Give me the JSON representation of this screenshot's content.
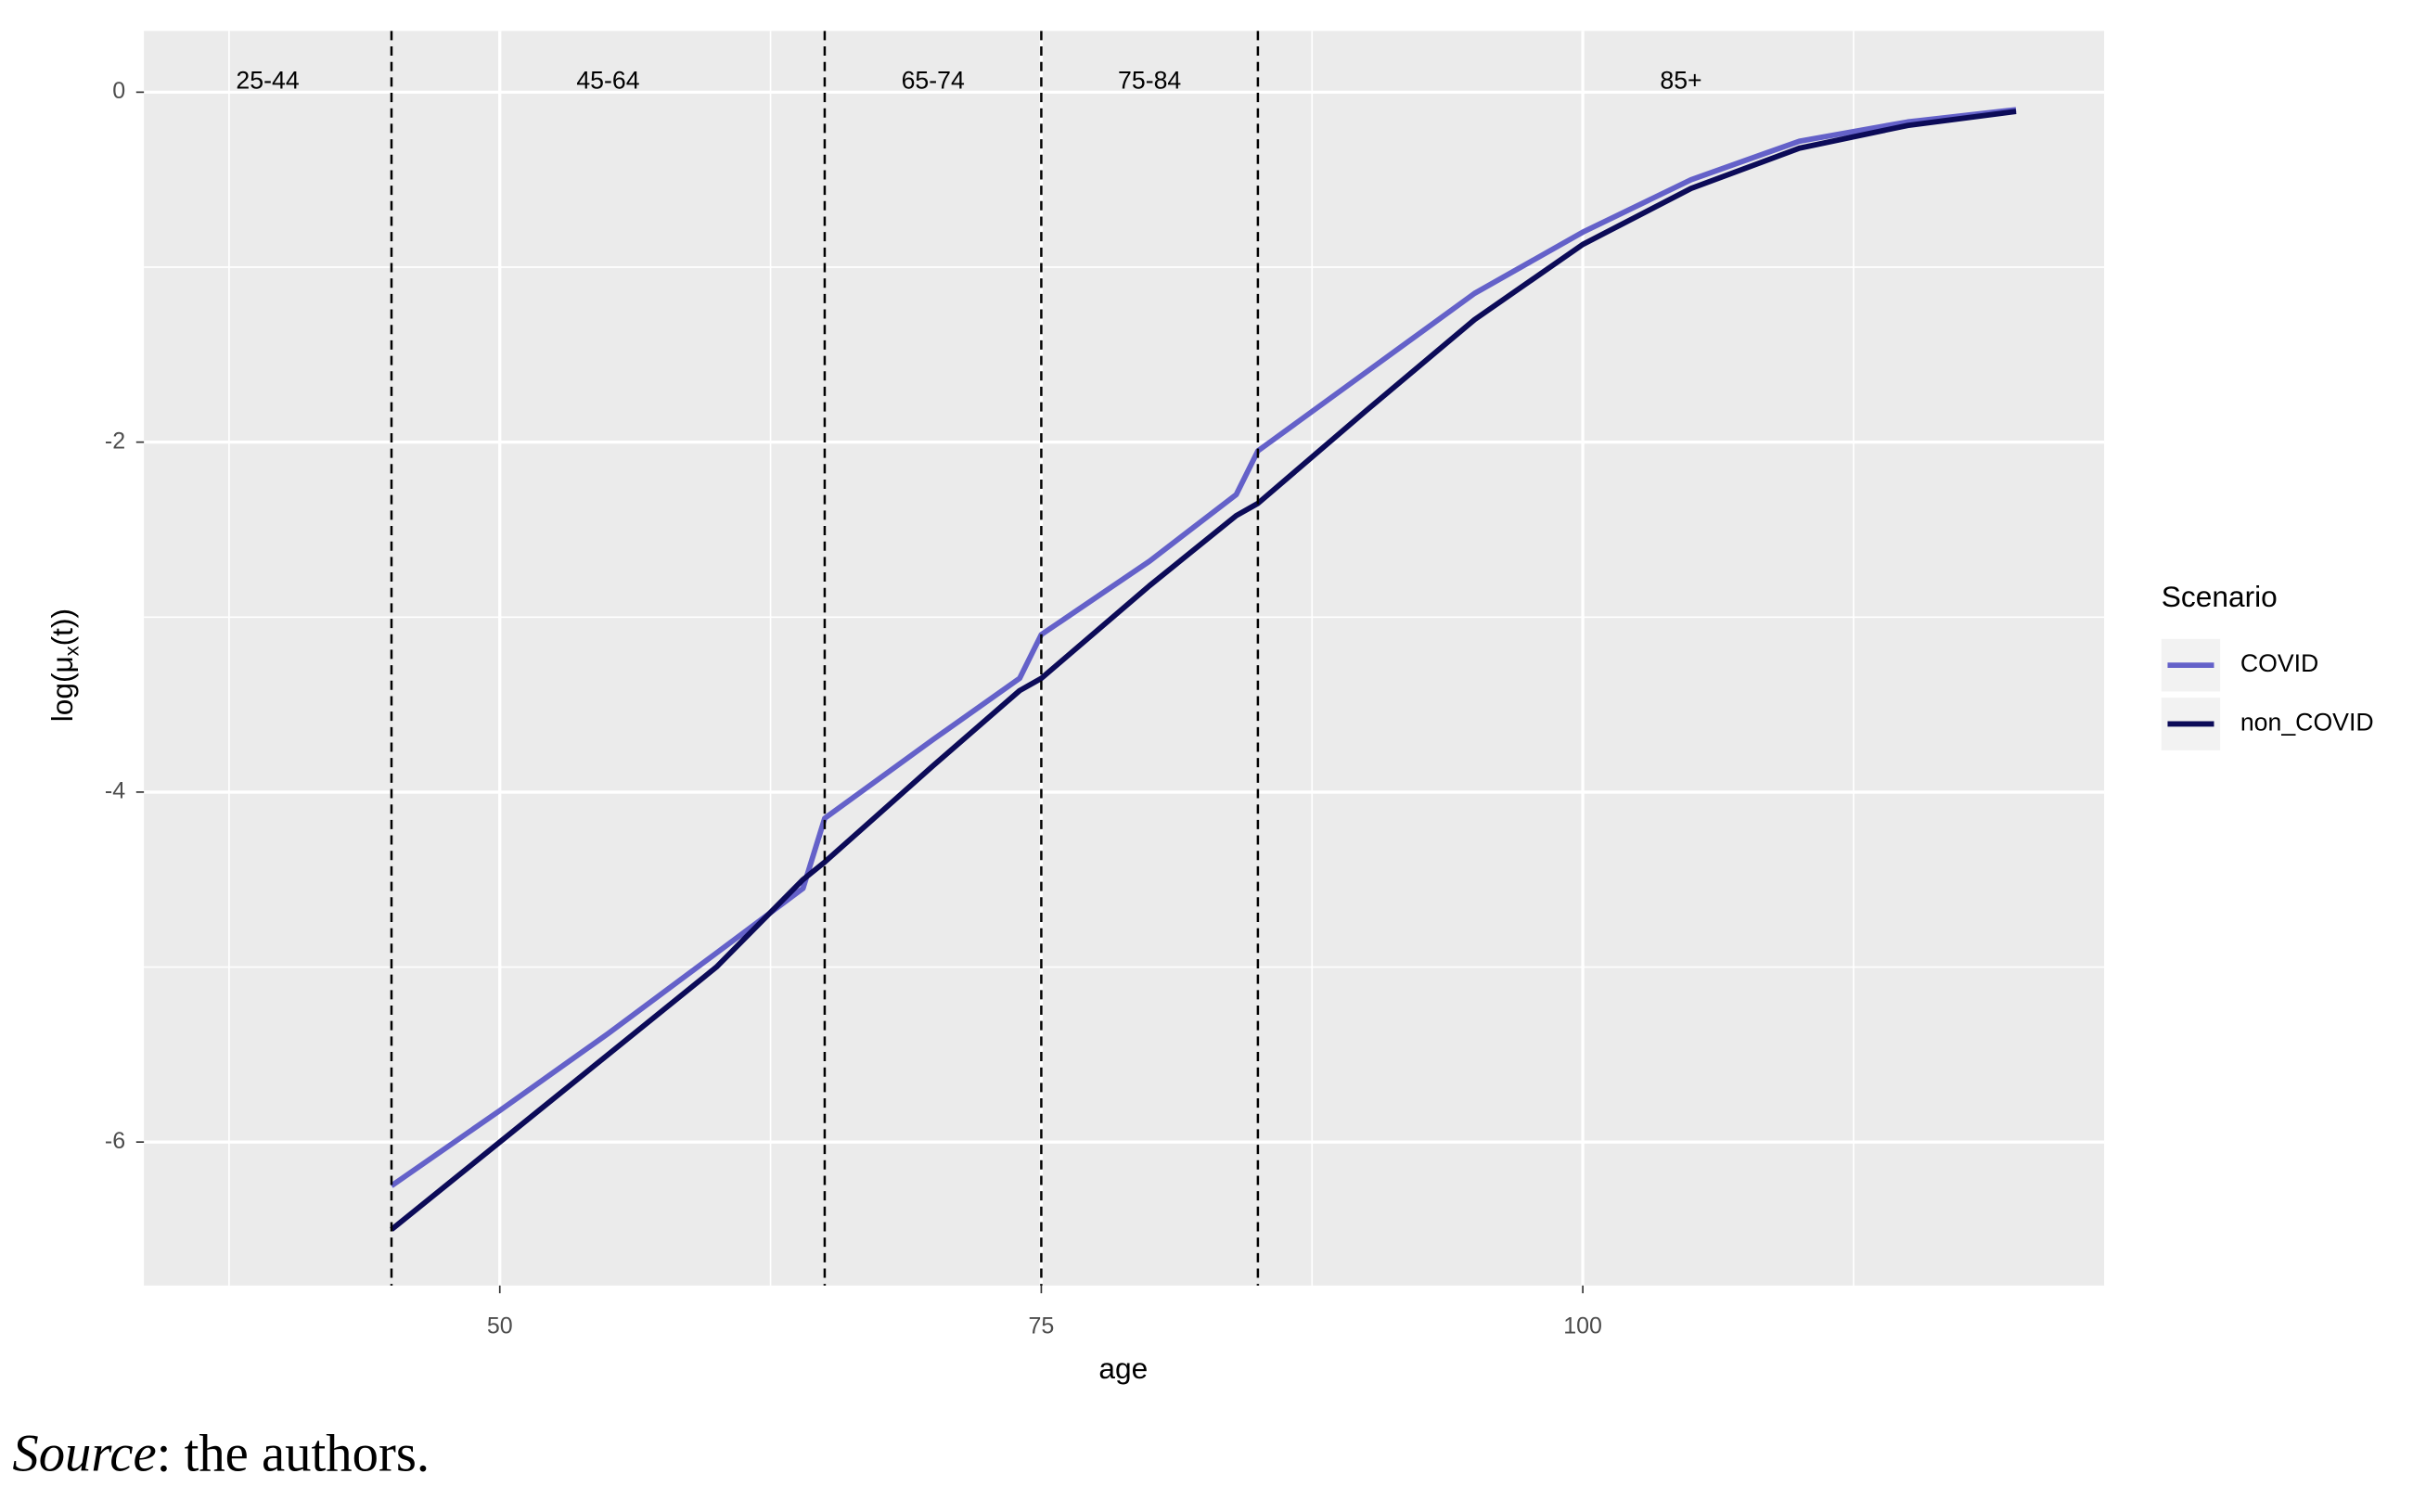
{
  "chart_data": {
    "type": "line",
    "xlabel": "age",
    "ylabel_parts": [
      "log(μ",
      "x",
      "(t))"
    ],
    "x": [
      45,
      50,
      55,
      60,
      64,
      65,
      70,
      74,
      75,
      80,
      84,
      85,
      90,
      95,
      100,
      105,
      110,
      115,
      120
    ],
    "series": [
      {
        "name": "COVID",
        "color": "#6461c9",
        "values": [
          -6.25,
          -5.82,
          -5.38,
          -4.92,
          -4.55,
          -4.15,
          -3.7,
          -3.35,
          -3.1,
          -2.68,
          -2.3,
          -2.05,
          -1.6,
          -1.15,
          -0.8,
          -0.5,
          -0.28,
          -0.17,
          -0.1
        ]
      },
      {
        "name": "non_COVID",
        "color": "#0c0b58",
        "values": [
          -6.5,
          -6.0,
          -5.5,
          -5.0,
          -4.5,
          -4.4,
          -3.85,
          -3.42,
          -3.35,
          -2.82,
          -2.42,
          -2.35,
          -1.82,
          -1.3,
          -0.87,
          -0.55,
          -0.32,
          -0.19,
          -0.11
        ]
      }
    ],
    "xlim": [
      33.57,
      124.07
    ],
    "ylim": [
      -6.82,
      0.35
    ],
    "xticks": [
      50,
      75,
      100
    ],
    "yticks": [
      0,
      -2,
      -4,
      -6
    ],
    "xminor": [
      37.5,
      62.5,
      87.5,
      112.5
    ],
    "yminor": [
      -1,
      -3,
      -5
    ],
    "grid": true,
    "vlines": [
      45,
      65,
      75,
      85
    ],
    "group_labels": [
      "25-44",
      "45-64",
      "65-74",
      "75-84",
      "85+"
    ],
    "legend_title": "Scenario",
    "legend_position": "right"
  },
  "caption": {
    "italic": "Source",
    "rest": ": the authors."
  }
}
